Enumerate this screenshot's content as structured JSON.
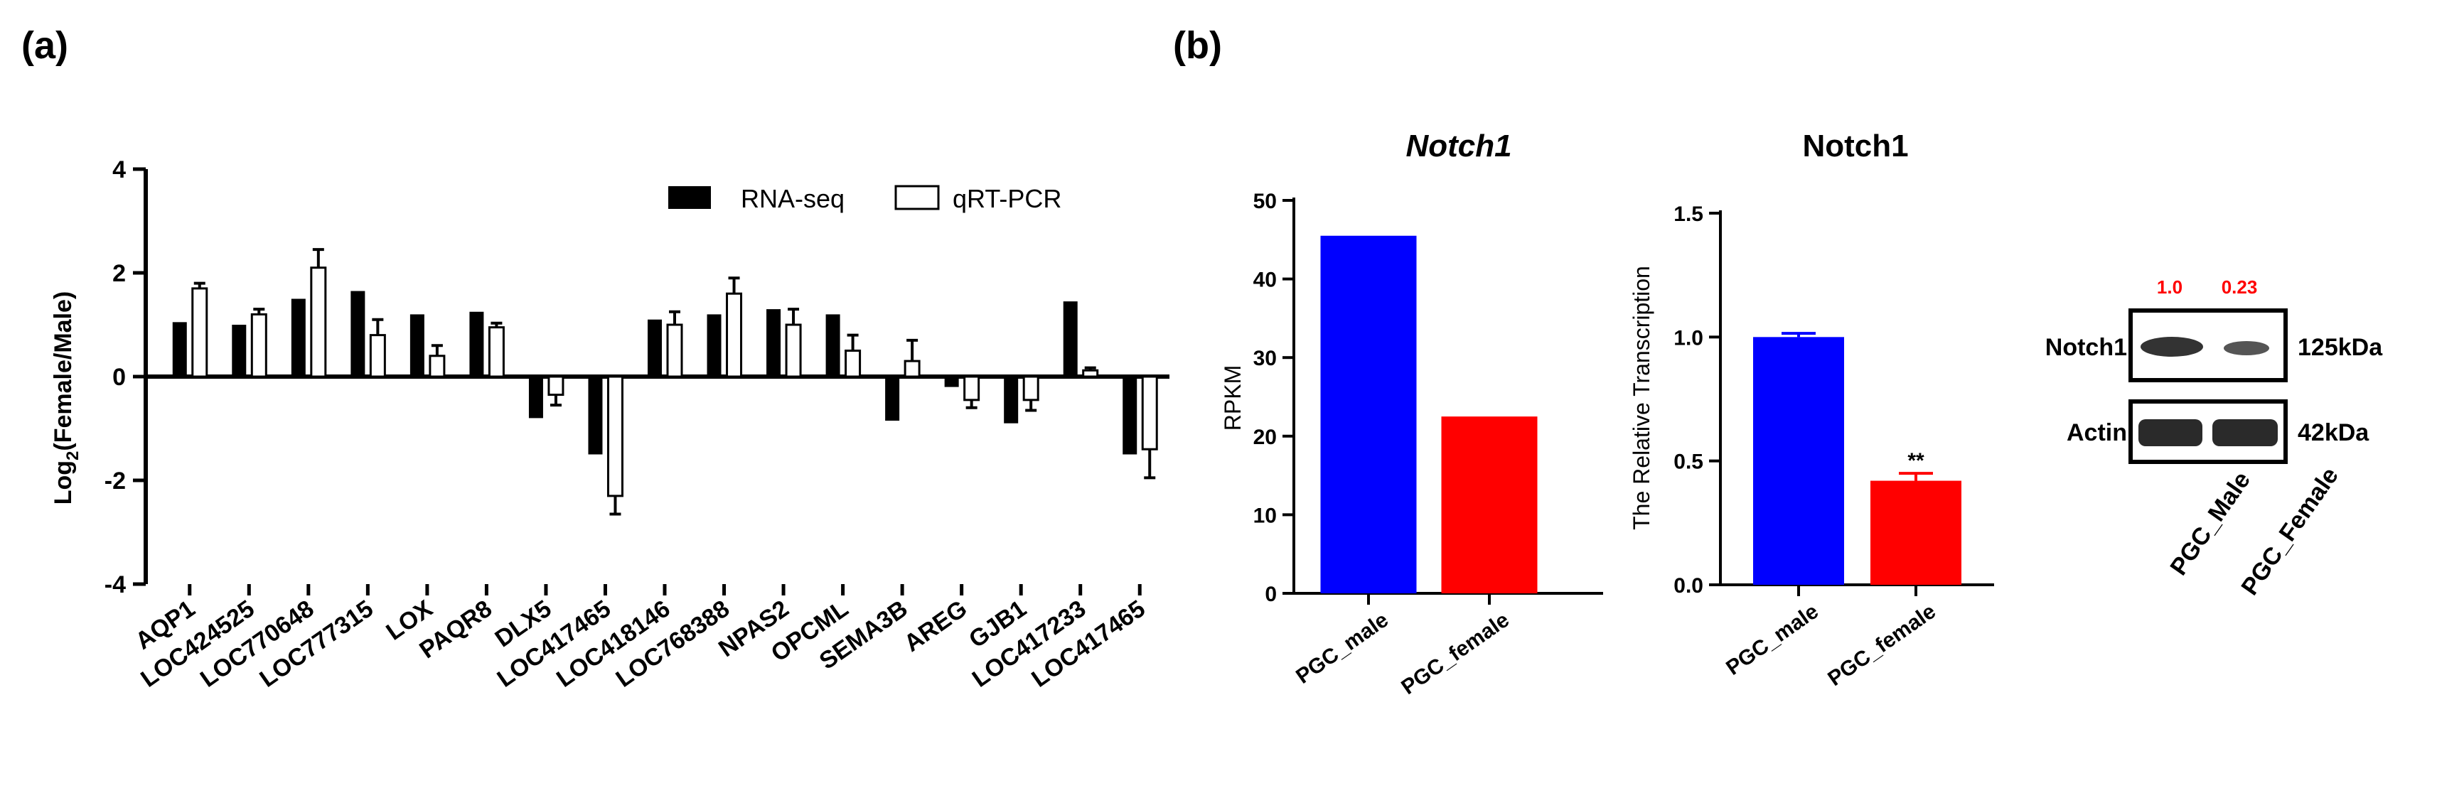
{
  "panels": {
    "a": "(a)",
    "b": "(b)"
  },
  "chart_data": [
    {
      "type": "bar",
      "id": "a",
      "title": "",
      "xlabel": "",
      "ylabel_prefix": "Log",
      "ylabel_sub": "2",
      "ylabel_rest": "(Female/Male)",
      "ylim": [
        -4,
        4
      ],
      "yticks": [
        "4",
        "2",
        "0",
        "-2",
        "-4"
      ],
      "categories": [
        "AQP1",
        "LOC424525",
        "LOC770648",
        "LOC777315",
        "LOX",
        "PAQR8",
        "DLX5",
        "LOC417465",
        "LOC418146",
        "LOC768388",
        "NPAS2",
        "OPCML",
        "SEMA3B",
        "AREG",
        "GJB1",
        "LOC417233",
        "LOC417465"
      ],
      "series": [
        {
          "name": "RNA-seq",
          "color": "#000000",
          "values": [
            1.05,
            1.0,
            1.5,
            1.65,
            1.2,
            1.25,
            -0.8,
            -1.5,
            1.1,
            1.2,
            1.3,
            1.2,
            -0.85,
            -0.2,
            -0.9,
            1.45,
            -1.5
          ]
        },
        {
          "name": "qRT-PCR",
          "color": "#ffffff",
          "values": [
            1.7,
            1.2,
            2.1,
            0.8,
            0.4,
            0.95,
            -0.35,
            -2.3,
            1.0,
            1.6,
            1.0,
            0.5,
            0.3,
            -0.45,
            -0.45,
            0.12,
            -1.4
          ],
          "errors": [
            0.1,
            0.1,
            0.35,
            0.3,
            0.2,
            0.08,
            0.2,
            0.35,
            0.25,
            0.3,
            0.3,
            0.3,
            0.4,
            0.15,
            0.2,
            0.05,
            0.55
          ]
        }
      ],
      "legend": [
        "RNA-seq",
        "qRT-PCR"
      ]
    },
    {
      "type": "bar",
      "id": "b1",
      "title": "Notch1",
      "ylabel": "RPKM",
      "ylim": [
        0,
        50
      ],
      "yticks": [
        "50",
        "40",
        "30",
        "20",
        "10",
        "0"
      ],
      "categories": [
        "PGC_male",
        "PGC_female"
      ],
      "values": [
        45.5,
        22.5
      ],
      "colors": [
        "#0000ff",
        "#ff0000"
      ]
    },
    {
      "type": "bar",
      "id": "b2",
      "title": "Notch1",
      "ylabel": "The Relative Transcription",
      "ylim": [
        0,
        1.5
      ],
      "yticks": [
        "1.5",
        "1.0",
        "0.5",
        "0.0"
      ],
      "categories": [
        "PGC_male",
        "PGC_female"
      ],
      "values": [
        1.0,
        0.42
      ],
      "errors": [
        0.015,
        0.03
      ],
      "colors": [
        "#0000ff",
        "#ff0000"
      ],
      "annotation": "**"
    }
  ],
  "western": {
    "quant": [
      "1.0",
      "0.23"
    ],
    "quant_color": "#ff0000",
    "rows": [
      {
        "label": "Notch1",
        "size": "125kDa"
      },
      {
        "label": "Actin",
        "size": "42kDa"
      }
    ],
    "lanes": [
      "PGC_Male",
      "PGC_Female"
    ]
  }
}
